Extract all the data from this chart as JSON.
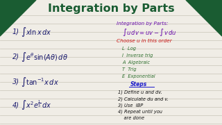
{
  "title": "Integration by Parts",
  "title_color": "#1a5c32",
  "title_fontsize": 11.5,
  "bg_color": "#f0ede6",
  "corner_color": "#1a5c32",
  "examples": [
    {
      "num": "1)",
      "expr": "$\\int x \\ln x\\, dx$"
    },
    {
      "num": "2)",
      "expr": "$\\int e^{\\theta}\\sin(A\\theta)\\,d\\theta$"
    },
    {
      "num": "3)",
      "expr": "$\\int \\tan^{-1}\\!x\\, dx$"
    },
    {
      "num": "4)",
      "expr": "$\\int x^2 e^{\\frac{1}{3}}\\, dx$"
    }
  ],
  "right_col": {
    "header": "Integration by Parts:",
    "formula": "$\\int u\\,dv = uv - \\int v\\,du$",
    "choose_label": "Choose u in this order",
    "liate": [
      "L  Log",
      "I  Inverse trig",
      "A  Algebraic",
      "T  Trig",
      "E  Exponential"
    ],
    "steps_label": "Steps",
    "steps": [
      "1) Define u and dv.",
      "2) Calculate du and v.",
      "3) Use  IBP",
      "4) Repeat until you",
      "    are done"
    ]
  },
  "line_color": "#c8c4b8",
  "example_color": "#1a1a6e",
  "right_header_color": "#6a0dad",
  "right_formula_color": "#6a0dad",
  "choose_color": "#cc1111",
  "liate_color": "#2d6e2d",
  "steps_label_color": "#1a1acc",
  "steps_color": "#111111"
}
